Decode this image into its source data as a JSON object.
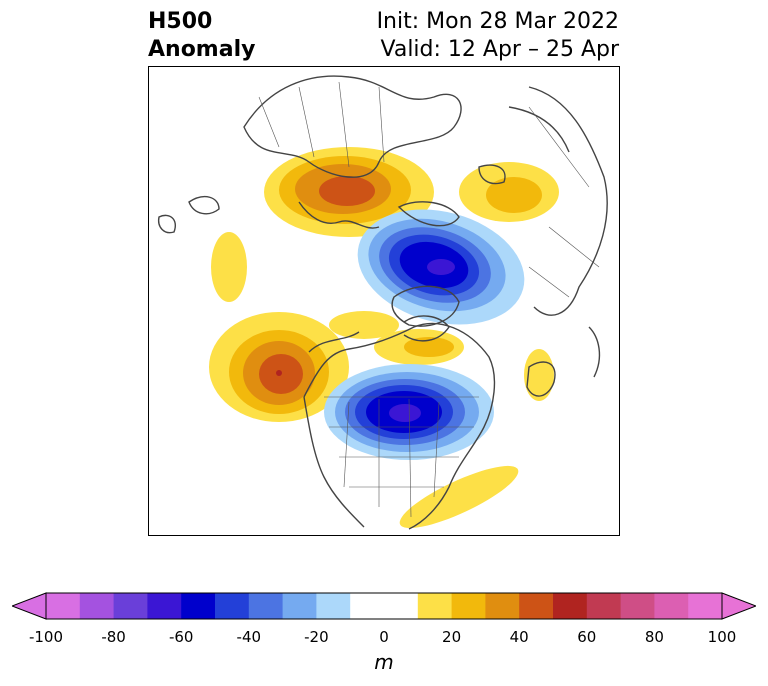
{
  "title": {
    "left_line1": "H500",
    "left_line2": "Anomaly",
    "right_line1": "Init: Mon 28 Mar 2022",
    "right_line2": "Valid: 12 Apr – 25 Apr"
  },
  "map": {
    "projection": "north-polar-stereographic",
    "field": "500 hPa geopotential height anomaly",
    "anomaly_centers": [
      {
        "region": "Europe / western Russia",
        "sign": "positive",
        "peak_m": 55
      },
      {
        "region": "Siberia / Arctic",
        "sign": "negative",
        "peak_m": -75
      },
      {
        "region": "Alaska / NE Pacific",
        "sign": "positive",
        "peak_m": 55
      },
      {
        "region": "Canada / Hudson Bay",
        "sign": "negative",
        "peak_m": -75
      },
      {
        "region": "Kamchatka / Bering",
        "sign": "positive",
        "peak_m": 25
      },
      {
        "region": "Greenland",
        "sign": "positive",
        "peak_m": 25
      },
      {
        "region": "Central Pacific",
        "sign": "positive",
        "peak_m": 15
      },
      {
        "region": "Western Atlantic",
        "sign": "positive",
        "peak_m": 15
      }
    ]
  },
  "colorbar": {
    "unit": "m",
    "min": -100,
    "max": 100,
    "step": 10,
    "extend": "both",
    "ticks": [
      "-100",
      "-80",
      "-60",
      "-40",
      "-20",
      "0",
      "20",
      "40",
      "60",
      "80",
      "100"
    ],
    "colors": [
      "#d86fe3",
      "#a452e0",
      "#6a3fd9",
      "#3b16d4",
      "#0000cc",
      "#2340d8",
      "#4c74e2",
      "#75aaf0",
      "#acd8fa",
      "#ffffff",
      "#ffffff",
      "#fde047",
      "#f2b90c",
      "#e08e10",
      "#cd5316",
      "#b02420",
      "#c13a52",
      "#cf4e86",
      "#dc5fb2",
      "#e772d6"
    ]
  }
}
